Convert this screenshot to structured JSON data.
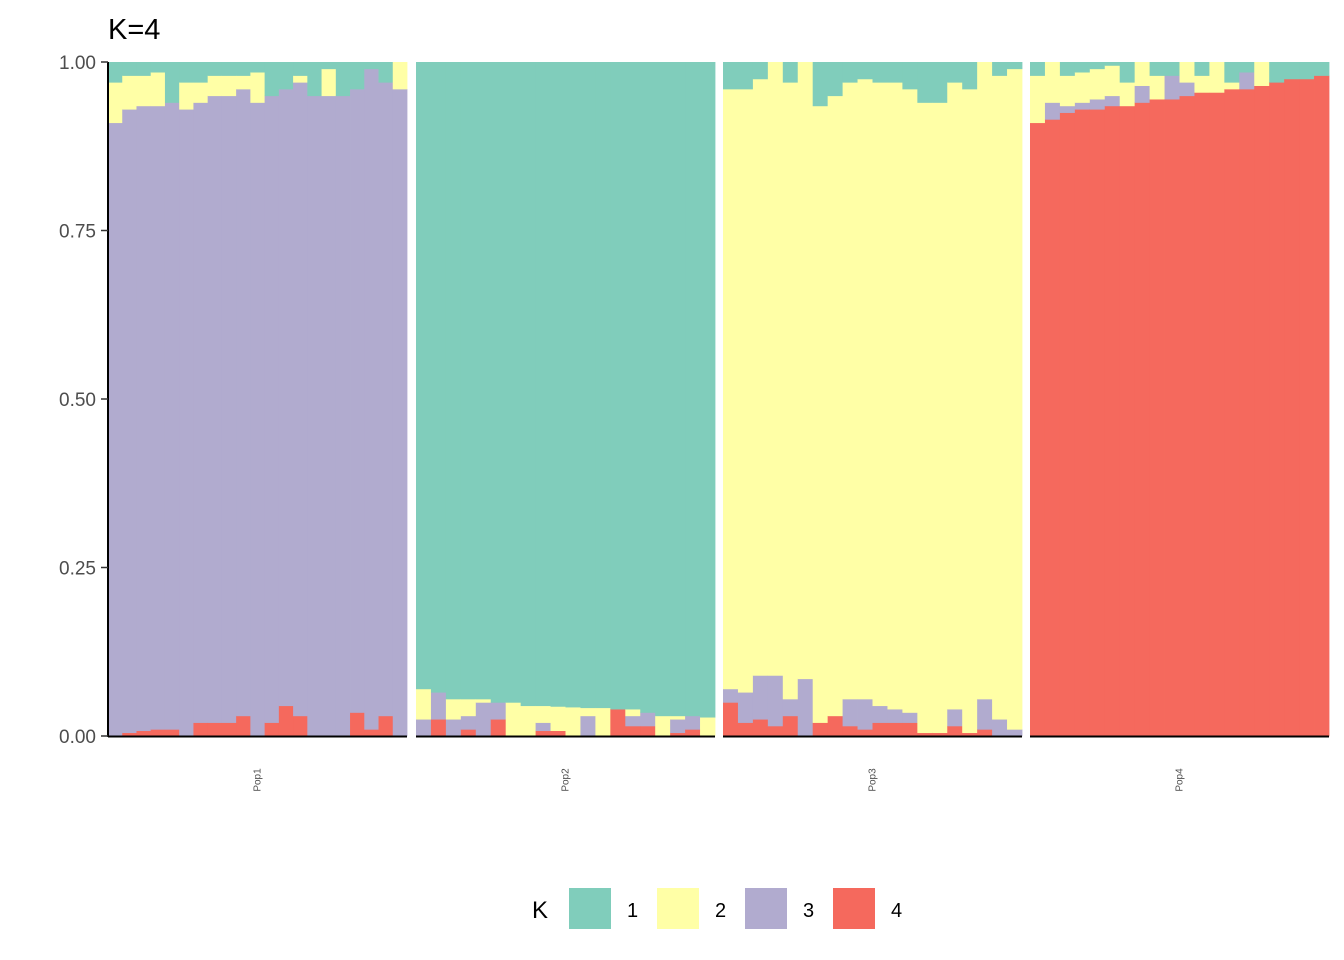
{
  "chart_data": {
    "type": "bar",
    "stacked": true,
    "title": "K=4",
    "xlabel": "",
    "ylabel": "",
    "ylim": [
      0,
      1
    ],
    "yticks": [
      "0.00",
      "0.25",
      "0.50",
      "0.75",
      "1.00"
    ],
    "grid": false,
    "legend": {
      "title": "K",
      "position": "bottom",
      "entries": [
        {
          "label": "1",
          "color": "#80CDBB"
        },
        {
          "label": "2",
          "color": "#FFFFA6"
        },
        {
          "label": "3",
          "color": "#B1ABCF"
        },
        {
          "label": "4",
          "color": "#F5695D"
        }
      ]
    },
    "stack_order_bottom_to_top": [
      "4",
      "3",
      "2",
      "1"
    ],
    "panels": [
      {
        "name": "Pop1",
        "individuals": [
          {
            "k4": 0.0,
            "k3": 0.91,
            "k2": 0.06,
            "k1": 0.03
          },
          {
            "k4": 0.005,
            "k3": 0.925,
            "k2": 0.05,
            "k1": 0.02
          },
          {
            "k4": 0.008,
            "k3": 0.927,
            "k2": 0.045,
            "k1": 0.02
          },
          {
            "k4": 0.01,
            "k3": 0.925,
            "k2": 0.05,
            "k1": 0.015
          },
          {
            "k4": 0.01,
            "k3": 0.93,
            "k2": 0.0,
            "k1": 0.06
          },
          {
            "k4": 0.0,
            "k3": 0.93,
            "k2": 0.04,
            "k1": 0.03
          },
          {
            "k4": 0.02,
            "k3": 0.92,
            "k2": 0.03,
            "k1": 0.03
          },
          {
            "k4": 0.02,
            "k3": 0.93,
            "k2": 0.03,
            "k1": 0.02
          },
          {
            "k4": 0.02,
            "k3": 0.93,
            "k2": 0.03,
            "k1": 0.02
          },
          {
            "k4": 0.03,
            "k3": 0.93,
            "k2": 0.02,
            "k1": 0.02
          },
          {
            "k4": 0.0,
            "k3": 0.94,
            "k2": 0.045,
            "k1": 0.015
          },
          {
            "k4": 0.02,
            "k3": 0.93,
            "k2": 0.0,
            "k1": 0.05
          },
          {
            "k4": 0.045,
            "k3": 0.915,
            "k2": 0.0,
            "k1": 0.04
          },
          {
            "k4": 0.03,
            "k3": 0.94,
            "k2": 0.01,
            "k1": 0.02
          },
          {
            "k4": 0.0,
            "k3": 0.95,
            "k2": 0.0,
            "k1": 0.05
          },
          {
            "k4": 0.0,
            "k3": 0.95,
            "k2": 0.04,
            "k1": 0.01
          },
          {
            "k4": 0.0,
            "k3": 0.95,
            "k2": 0.0,
            "k1": 0.05
          },
          {
            "k4": 0.035,
            "k3": 0.925,
            "k2": 0.0,
            "k1": 0.04
          },
          {
            "k4": 0.01,
            "k3": 0.98,
            "k2": 0.0,
            "k1": 0.01
          },
          {
            "k4": 0.03,
            "k3": 0.94,
            "k2": 0.0,
            "k1": 0.03
          },
          {
            "k4": 0.0,
            "k3": 0.96,
            "k2": 0.04,
            "k1": 0.0
          }
        ]
      },
      {
        "name": "Pop2",
        "individuals": [
          {
            "k4": 0.0,
            "k3": 0.025,
            "k2": 0.045,
            "k1": 0.93
          },
          {
            "k4": 0.025,
            "k3": 0.04,
            "k2": 0.0,
            "k1": 0.935
          },
          {
            "k4": 0.0,
            "k3": 0.025,
            "k2": 0.03,
            "k1": 0.945
          },
          {
            "k4": 0.01,
            "k3": 0.02,
            "k2": 0.025,
            "k1": 0.945
          },
          {
            "k4": 0.0,
            "k3": 0.05,
            "k2": 0.005,
            "k1": 0.945
          },
          {
            "k4": 0.025,
            "k3": 0.025,
            "k2": 0.0,
            "k1": 0.95
          },
          {
            "k4": 0.0,
            "k3": 0.0,
            "k2": 0.05,
            "k1": 0.95
          },
          {
            "k4": 0.0,
            "k3": 0.0,
            "k2": 0.045,
            "k1": 0.955
          },
          {
            "k4": 0.008,
            "k3": 0.012,
            "k2": 0.025,
            "k1": 0.955
          },
          {
            "k4": 0.008,
            "k3": 0.0,
            "k2": 0.036,
            "k1": 0.956
          },
          {
            "k4": 0.0,
            "k3": 0.0,
            "k2": 0.043,
            "k1": 0.957
          },
          {
            "k4": 0.0,
            "k3": 0.03,
            "k2": 0.012,
            "k1": 0.958
          },
          {
            "k4": 0.0,
            "k3": 0.0,
            "k2": 0.042,
            "k1": 0.958
          },
          {
            "k4": 0.04,
            "k3": 0.0,
            "k2": 0.0,
            "k1": 0.96
          },
          {
            "k4": 0.015,
            "k3": 0.015,
            "k2": 0.01,
            "k1": 0.96
          },
          {
            "k4": 0.015,
            "k3": 0.02,
            "k2": 0.0,
            "k1": 0.965
          },
          {
            "k4": 0.0,
            "k3": 0.0,
            "k2": 0.03,
            "k1": 0.97
          },
          {
            "k4": 0.005,
            "k3": 0.02,
            "k2": 0.005,
            "k1": 0.97
          },
          {
            "k4": 0.01,
            "k3": 0.02,
            "k2": 0.0,
            "k1": 0.97
          },
          {
            "k4": 0.0,
            "k3": 0.0,
            "k2": 0.028,
            "k1": 0.972
          }
        ]
      },
      {
        "name": "Pop3",
        "individuals": [
          {
            "k4": 0.05,
            "k3": 0.02,
            "k2": 0.89,
            "k1": 0.04
          },
          {
            "k4": 0.02,
            "k3": 0.045,
            "k2": 0.895,
            "k1": 0.04
          },
          {
            "k4": 0.025,
            "k3": 0.065,
            "k2": 0.885,
            "k1": 0.025
          },
          {
            "k4": 0.015,
            "k3": 0.075,
            "k2": 0.91,
            "k1": 0.0
          },
          {
            "k4": 0.03,
            "k3": 0.025,
            "k2": 0.915,
            "k1": 0.03
          },
          {
            "k4": 0.0,
            "k3": 0.085,
            "k2": 0.915,
            "k1": 0.0
          },
          {
            "k4": 0.02,
            "k3": 0.0,
            "k2": 0.915,
            "k1": 0.065
          },
          {
            "k4": 0.03,
            "k3": 0.0,
            "k2": 0.92,
            "k1": 0.05
          },
          {
            "k4": 0.015,
            "k3": 0.04,
            "k2": 0.915,
            "k1": 0.03
          },
          {
            "k4": 0.01,
            "k3": 0.045,
            "k2": 0.92,
            "k1": 0.025
          },
          {
            "k4": 0.02,
            "k3": 0.025,
            "k2": 0.925,
            "k1": 0.03
          },
          {
            "k4": 0.02,
            "k3": 0.02,
            "k2": 0.93,
            "k1": 0.03
          },
          {
            "k4": 0.02,
            "k3": 0.015,
            "k2": 0.925,
            "k1": 0.04
          },
          {
            "k4": 0.005,
            "k3": 0.0,
            "k2": 0.935,
            "k1": 0.06
          },
          {
            "k4": 0.005,
            "k3": 0.0,
            "k2": 0.935,
            "k1": 0.06
          },
          {
            "k4": 0.015,
            "k3": 0.025,
            "k2": 0.93,
            "k1": 0.03
          },
          {
            "k4": 0.005,
            "k3": 0.0,
            "k2": 0.955,
            "k1": 0.04
          },
          {
            "k4": 0.01,
            "k3": 0.045,
            "k2": 0.945,
            "k1": 0.0
          },
          {
            "k4": 0.0,
            "k3": 0.025,
            "k2": 0.955,
            "k1": 0.02
          },
          {
            "k4": 0.0,
            "k3": 0.01,
            "k2": 0.98,
            "k1": 0.01
          }
        ]
      },
      {
        "name": "Pop4",
        "individuals": [
          {
            "k4": 0.91,
            "k3": 0.0,
            "k2": 0.07,
            "k1": 0.02
          },
          {
            "k4": 0.915,
            "k3": 0.025,
            "k2": 0.06,
            "k1": 0.0
          },
          {
            "k4": 0.925,
            "k3": 0.01,
            "k2": 0.045,
            "k1": 0.02
          },
          {
            "k4": 0.93,
            "k3": 0.01,
            "k2": 0.045,
            "k1": 0.015
          },
          {
            "k4": 0.93,
            "k3": 0.015,
            "k2": 0.045,
            "k1": 0.01
          },
          {
            "k4": 0.935,
            "k3": 0.015,
            "k2": 0.045,
            "k1": 0.005
          },
          {
            "k4": 0.935,
            "k3": 0.0,
            "k2": 0.035,
            "k1": 0.03
          },
          {
            "k4": 0.94,
            "k3": 0.025,
            "k2": 0.035,
            "k1": 0.0
          },
          {
            "k4": 0.945,
            "k3": 0.0,
            "k2": 0.035,
            "k1": 0.02
          },
          {
            "k4": 0.945,
            "k3": 0.035,
            "k2": 0.0,
            "k1": 0.02
          },
          {
            "k4": 0.95,
            "k3": 0.02,
            "k2": 0.03,
            "k1": 0.0
          },
          {
            "k4": 0.955,
            "k3": 0.0,
            "k2": 0.025,
            "k1": 0.02
          },
          {
            "k4": 0.955,
            "k3": 0.0,
            "k2": 0.045,
            "k1": 0.0
          },
          {
            "k4": 0.96,
            "k3": 0.0,
            "k2": 0.01,
            "k1": 0.03
          },
          {
            "k4": 0.96,
            "k3": 0.025,
            "k2": 0.0,
            "k1": 0.015
          },
          {
            "k4": 0.965,
            "k3": 0.0,
            "k2": 0.035,
            "k1": 0.0
          },
          {
            "k4": 0.97,
            "k3": 0.0,
            "k2": 0.0,
            "k1": 0.03
          },
          {
            "k4": 0.975,
            "k3": 0.0,
            "k2": 0.0,
            "k1": 0.025
          },
          {
            "k4": 0.975,
            "k3": 0.0,
            "k2": 0.0,
            "k1": 0.025
          },
          {
            "k4": 0.98,
            "k3": 0.0,
            "k2": 0.0,
            "k1": 0.02
          }
        ]
      }
    ]
  }
}
